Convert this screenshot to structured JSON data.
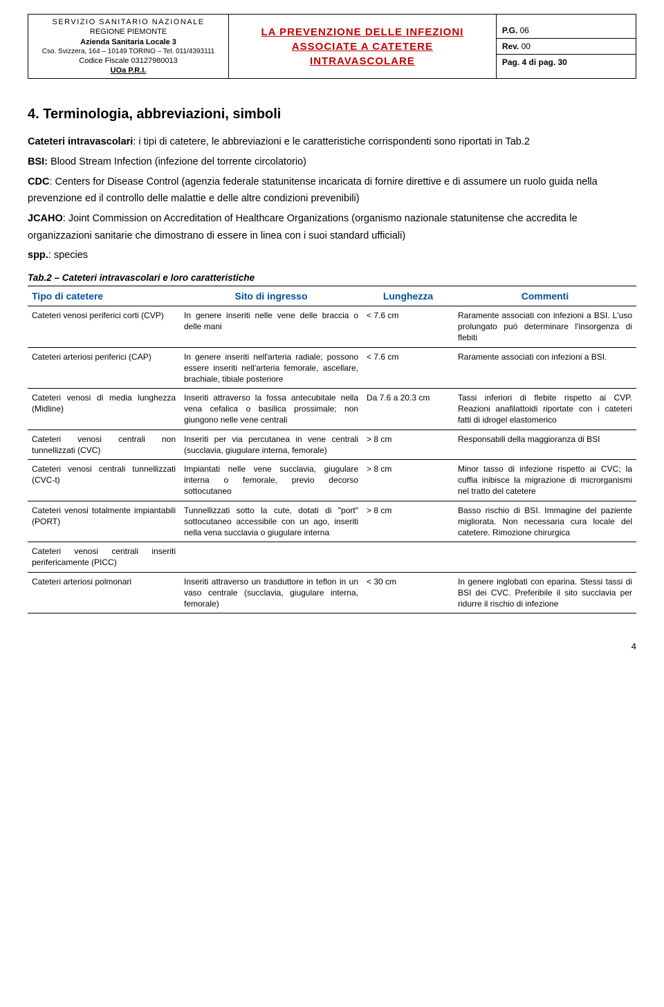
{
  "header": {
    "left": {
      "line1": "SERVIZIO SANITARIO NAZIONALE",
      "line2": "REGIONE PIEMONTE",
      "line3": "Azienda Sanitaria Locale 3",
      "line4": "Cso. Svizzera, 164 – 10149 TORINO – Tel. 011/4393111",
      "line5": "Codice Fiscale 03127980013",
      "line6": "UOa P.R.I."
    },
    "center": {
      "line1": "LA PREVENZIONE DELLE INFEZIONI",
      "line2": "ASSOCIATE A CATETERE",
      "line3": "INTRAVASCOLARE"
    },
    "right": {
      "pg_label": "P.G.",
      "pg_val": "06",
      "rev_label": "Rev.",
      "rev_val": "00",
      "pag": "Pag. 4 di pag. 30"
    }
  },
  "section": {
    "heading": "4. Terminologia, abbreviazioni, simboli",
    "p1a": "Cateteri intravascolari",
    "p1b": ": i tipi di catetere, le abbreviazioni e le caratteristiche corrispondenti sono riportati in Tab.2",
    "p2a": "BSI: ",
    "p2b": "Blood Stream Infection (infezione del torrente circolatorio)",
    "p3a": "CDC",
    "p3b": ": Centers for Disease Control (agenzia federale statunitense incaricata di fornire direttive e di assumere un ruolo guida nella prevenzione ed il controllo delle malattie e delle altre condizioni prevenibili)",
    "p4a": "JCAHO",
    "p4b": ": Joint Commission on Accreditation of Healthcare Organizations (organismo nazionale statunitense che accredita le organizzazioni sanitarie che dimostrano di essere in linea con i suoi standard ufficiali)",
    "p5a": "spp.",
    "p5b": ": species"
  },
  "table": {
    "caption": "Tab.2 – Cateteri intravascolari e loro caratteristiche",
    "columns": [
      "Tipo di catetere",
      "Sito di ingresso",
      "Lunghezza",
      "Commenti"
    ],
    "rows": [
      {
        "tipo": "Cateteri venosi periferici corti (CVP)",
        "sito": "In genere inseriti nelle vene delle braccia o delle mani",
        "lung": "< 7.6 cm",
        "comm": "Raramente associati con infezioni a BSI. L'uso prolungato può determinare l'insorgenza di flebiti"
      },
      {
        "tipo": "Cateteri arteriosi periferici (CAP)",
        "sito": "In genere inseriti nell'arteria radiale; possono essere inseriti nell'arteria femorale, ascellare, brachiale, tibiale posteriore",
        "lung": "< 7.6 cm",
        "comm": "Raramente associati con infezioni a BSI."
      },
      {
        "tipo": "Cateteri venosi di media lunghezza (Midline)",
        "sito": "Inseriti attraverso la fossa antecubitale nella vena cefalica o basilica prossimale; non giungono nelle vene centrali",
        "lung": "Da 7.6 a 20.3 cm",
        "comm": "Tassi inferiori di flebite rispetto ai CVP. Reazioni anafilattoidi riportate con i cateteri fatti di idrogel elastomerico"
      },
      {
        "tipo": "Cateteri venosi centrali non tunnellizzati (CVC)",
        "sito": "Inseriti per via percutanea in vene centrali (succlavia, giugulare interna, femorale)",
        "lung": "> 8 cm",
        "comm": "Responsabili della maggioranza di BSI"
      },
      {
        "tipo": "Cateteri venosi centrali tunnellizzati (CVC-t)",
        "sito": "Impiantati nelle vene succlavia, giugulare interna o femorale, previo decorso sottocutaneo",
        "lung": "> 8 cm",
        "comm": "Minor tasso di infezione rispetto ai CVC; la cuffia inibisce la migrazione di microrganismi nel tratto del catetere"
      },
      {
        "tipo": "Cateteri venosi totalmente impiantabili (PORT)",
        "sito": "Tunnellizzati sotto la cute, dotati di \"port\" sottocutaneo accessibile con un ago, inseriti nella vena succlavia o giugulare interna",
        "lung": "> 8 cm",
        "comm": "Basso rischio di BSI. Immagine del paziente migliorata. Non necessaria cura locale del catetere. Rimozione chirurgica"
      },
      {
        "tipo": "Cateteri venosi centrali inseriti perifericamente (PICC)",
        "sito": "",
        "lung": "",
        "comm": ""
      },
      {
        "tipo": "Cateteri arteriosi polmonari",
        "sito": "Inseriti attraverso un trasduttore in teflon in un vaso centrale (succlavia, giugulare interna, femorale)",
        "lung": "< 30 cm",
        "comm": "In genere inglobati con eparina. Stessi tassi di BSI dei CVC. Preferibile il sito succlavia per ridurre il rischio di infezione"
      }
    ]
  },
  "page_number": "4"
}
